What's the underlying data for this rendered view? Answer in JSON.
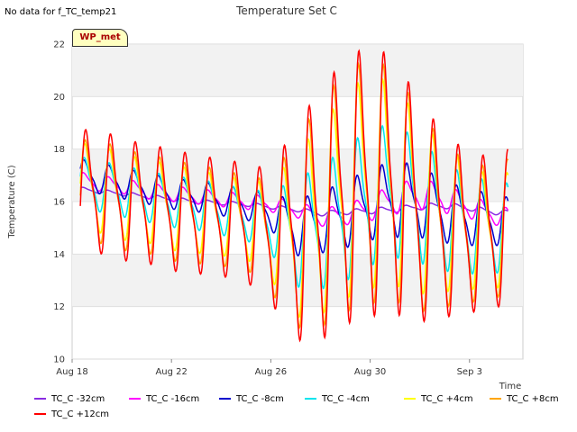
{
  "header": {
    "nodata_text": "No data for f_TC_temp21"
  },
  "badge": {
    "label": "WP_met"
  },
  "chart_data": {
    "type": "line",
    "title": "Temperature Set C",
    "xlabel": "Time",
    "ylabel": "Temperature (C)",
    "xlim": [
      0,
      18.15
    ],
    "ylim": [
      10,
      22
    ],
    "x_ticks": [
      {
        "x": 0,
        "label": "Aug 18"
      },
      {
        "x": 4,
        "label": "Aug 22"
      },
      {
        "x": 8,
        "label": "Aug 26"
      },
      {
        "x": 12,
        "label": "Aug 30"
      },
      {
        "x": 16,
        "label": "Sep 3"
      }
    ],
    "y_ticks": [
      10,
      12,
      14,
      16,
      18,
      20,
      22
    ],
    "grid": true,
    "legend_position": "bottom",
    "series": [
      {
        "name": "TC_C -32cm",
        "color": "#8a2be2",
        "x_start": 0.33,
        "daily": [
          16.5,
          16.4,
          16.3,
          16.2,
          16.1,
          16.0,
          15.95,
          15.9,
          15.8,
          15.7,
          15.55,
          15.6,
          15.65,
          15.7,
          15.8,
          15.85,
          15.75,
          15.6,
          15.55
        ],
        "amplitudes": [
          0.1,
          0.08,
          0.08,
          0.08,
          0.08,
          0.08,
          0.08,
          0.08,
          0.08,
          0.08,
          0.1,
          0.1,
          0.12,
          0.12,
          0.12,
          0.12,
          0.1,
          0.1,
          0.1
        ]
      },
      {
        "name": "TC_C -16cm",
        "color": "#ff00ff",
        "x_start": 0.33,
        "daily": [
          16.9,
          16.7,
          16.6,
          16.4,
          16.3,
          16.2,
          16.1,
          16.0,
          15.9,
          15.7,
          15.4,
          15.5,
          15.75,
          16.1,
          16.3,
          16.1,
          15.8,
          15.5,
          15.3
        ],
        "amplitudes": [
          0.3,
          0.3,
          0.3,
          0.3,
          0.3,
          0.3,
          0.3,
          0.3,
          0.3,
          0.3,
          0.35,
          0.4,
          0.5,
          0.6,
          0.6,
          0.55,
          0.45,
          0.4,
          0.35
        ]
      },
      {
        "name": "TC_C -8cm",
        "color": "#0000cd",
        "x_start": 0.33,
        "daily": [
          17.1,
          16.9,
          16.7,
          16.5,
          16.3,
          16.2,
          16.05,
          15.9,
          15.6,
          15.0,
          15.2,
          15.5,
          15.9,
          16.1,
          16.0,
          15.6,
          15.4,
          15.3,
          15.2
        ],
        "amplitudes": [
          0.6,
          0.6,
          0.6,
          0.6,
          0.6,
          0.6,
          0.6,
          0.6,
          0.7,
          1.1,
          1.2,
          1.3,
          1.4,
          1.5,
          1.4,
          1.2,
          1.1,
          1.0,
          0.9
        ]
      },
      {
        "name": "TC_C -4cm",
        "color": "#00e5ee",
        "x_start": 0.33,
        "daily": [
          16.8,
          16.6,
          16.4,
          16.2,
          16.0,
          15.9,
          15.7,
          15.5,
          15.2,
          14.8,
          15.0,
          15.5,
          16.2,
          16.4,
          16.0,
          15.4,
          15.1,
          15.0,
          15.1
        ],
        "amplitudes": [
          1.0,
          1.0,
          1.0,
          1.0,
          1.0,
          1.0,
          1.0,
          1.0,
          1.2,
          2.1,
          2.4,
          2.6,
          2.7,
          2.6,
          2.4,
          2.1,
          1.9,
          1.8,
          1.6
        ]
      },
      {
        "name": "TC_C +4cm",
        "color": "#ffff00",
        "x_start": 0.33,
        "daily": [
          16.6,
          16.5,
          16.2,
          16.0,
          15.8,
          15.6,
          15.5,
          15.3,
          14.9,
          14.7,
          15.3,
          16.2,
          16.8,
          16.6,
          15.8,
          15.3,
          15.0,
          14.8,
          15.2
        ],
        "amplitudes": [
          1.7,
          1.7,
          1.7,
          1.6,
          1.7,
          1.6,
          1.6,
          1.5,
          1.9,
          3.2,
          3.7,
          4.0,
          4.2,
          3.9,
          3.4,
          2.8,
          2.4,
          2.2,
          2.1
        ]
      },
      {
        "name": "TC_C +8cm",
        "color": "#ffa500",
        "x_start": 0.33,
        "daily": [
          16.4,
          16.4,
          16.1,
          15.9,
          15.7,
          15.5,
          15.4,
          15.2,
          14.7,
          14.8,
          15.5,
          16.4,
          16.8,
          16.6,
          15.6,
          15.1,
          14.8,
          14.8,
          15.4
        ],
        "amplitudes": [
          2.0,
          2.0,
          2.0,
          1.9,
          2.0,
          1.9,
          1.9,
          1.8,
          2.2,
          3.7,
          4.4,
          4.7,
          4.8,
          4.5,
          3.9,
          3.2,
          2.7,
          2.6,
          2.5
        ]
      },
      {
        "name": "TC_C +12cm",
        "color": "#ff0000",
        "x_start": 0.33,
        "daily": [
          16.4,
          16.4,
          16.1,
          15.9,
          15.7,
          15.5,
          15.4,
          15.2,
          14.7,
          14.8,
          15.5,
          16.4,
          16.8,
          16.6,
          15.6,
          15.1,
          14.8,
          14.8,
          15.4
        ],
        "amplitudes": [
          2.4,
          2.4,
          2.4,
          2.3,
          2.4,
          2.3,
          2.3,
          2.3,
          2.6,
          4.2,
          4.9,
          5.2,
          5.3,
          5.0,
          4.3,
          3.6,
          3.1,
          3.0,
          2.9
        ]
      }
    ]
  }
}
